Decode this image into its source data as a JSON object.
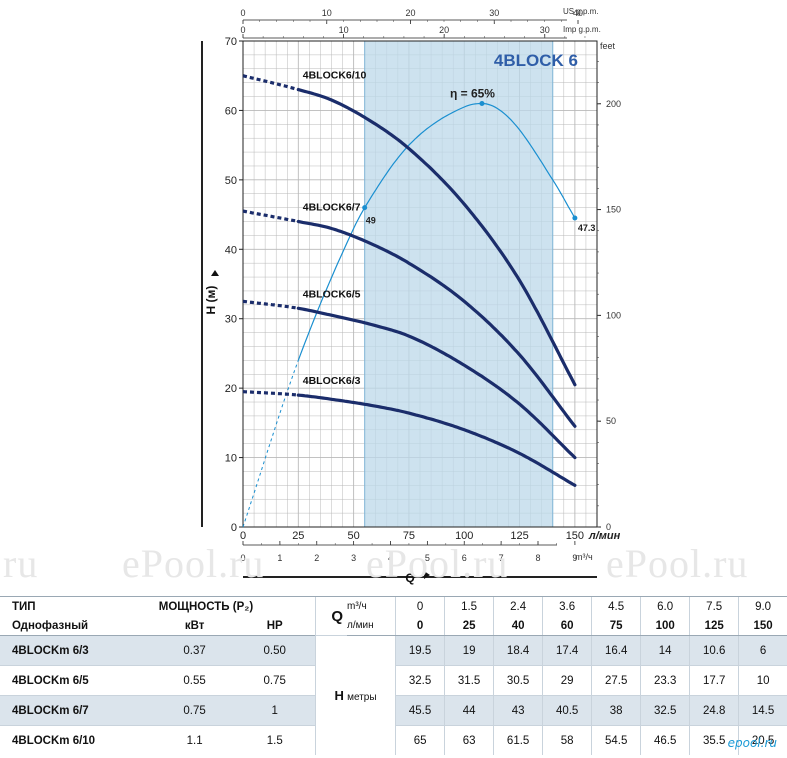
{
  "chart_data": {
    "type": "line",
    "title": "4BLOCK 6",
    "ylabel": "H (м)",
    "xlabel": "Q",
    "ylim": [
      0,
      70
    ],
    "yticks": [
      0,
      10,
      20,
      30,
      40,
      50,
      60,
      70
    ],
    "xlim": [
      0,
      160
    ],
    "xticks_lmin": [
      0,
      25,
      50,
      75,
      100,
      125,
      150
    ],
    "xticks_lmin_labels": [
      "0",
      "25",
      "50",
      "75",
      "100",
      "125",
      "150"
    ],
    "x_unit_lmin": "л/мин",
    "xticks_m3h": [
      0,
      1,
      2,
      3,
      4,
      5,
      6,
      7,
      8,
      9
    ],
    "x_unit_m3h": "m³/ч",
    "top_us_ticks": [
      0,
      10,
      20,
      30,
      40
    ],
    "top_us_label": "US g.p.m.",
    "top_imp_ticks": [
      0,
      10,
      20,
      30
    ],
    "top_imp_label": "Imp g.p.m.",
    "right_feet_ticks": [
      0,
      50,
      100,
      150,
      200
    ],
    "right_feet_label": "feet",
    "grid": true,
    "shaded_region_lmin": [
      55,
      140
    ],
    "series": [
      {
        "name": "4BLOCK6/10",
        "x": [
          0,
          25,
          40,
          60,
          75,
          100,
          125,
          150
        ],
        "y": [
          65,
          63,
          61.5,
          58,
          54.5,
          46.5,
          35.5,
          20.5
        ]
      },
      {
        "name": "4BLOCK6/7",
        "x": [
          0,
          25,
          40,
          60,
          75,
          100,
          125,
          150
        ],
        "y": [
          45.5,
          44,
          43,
          40.5,
          38,
          32.5,
          24.8,
          14.5
        ]
      },
      {
        "name": "4BLOCK6/5",
        "x": [
          0,
          25,
          40,
          60,
          75,
          100,
          125,
          150
        ],
        "y": [
          32.5,
          31.5,
          30.5,
          29,
          27.5,
          23.3,
          17.7,
          10
        ]
      },
      {
        "name": "4BLOCK6/3",
        "x": [
          0,
          25,
          40,
          60,
          75,
          100,
          125,
          150
        ],
        "y": [
          19.5,
          19,
          18.4,
          17.4,
          16.4,
          14,
          10.6,
          6
        ]
      }
    ],
    "efficiency": {
      "label": "η = 65%",
      "start_label": "49",
      "end_label": "47.3",
      "points_x": [
        0,
        25,
        50,
        55,
        75,
        100,
        108,
        120,
        140,
        150
      ],
      "points_y": [
        0,
        24,
        43,
        46,
        55,
        60.5,
        61,
        59,
        50,
        44.5
      ],
      "marked_x": [
        55,
        108,
        150
      ]
    }
  },
  "watermarks": [
    ".ru",
    "ePool.ru",
    "ePool.ru",
    "ePool.ru"
  ],
  "table": {
    "h_type": "ТИП",
    "h_single": "Однофазный",
    "h_power": "МОЩНОСТЬ (P₂)",
    "h_kw": "кВт",
    "h_hp": "HP",
    "q_label": "Q",
    "q_unit_m3h": "m³/ч",
    "q_unit_lmin": "л/мин",
    "q_m3h": [
      "0",
      "1.5",
      "2.4",
      "3.6",
      "4.5",
      "6.0",
      "7.5",
      "9.0"
    ],
    "q_lmin": [
      "0",
      "25",
      "40",
      "60",
      "75",
      "100",
      "125",
      "150"
    ],
    "h_label": "H",
    "h_unit": "метры",
    "rows": [
      {
        "model": "4BLOCKm 6/3",
        "kw": "0.37",
        "hp": "0.50",
        "h": [
          "19.5",
          "19",
          "18.4",
          "17.4",
          "16.4",
          "14",
          "10.6",
          "6"
        ]
      },
      {
        "model": "4BLOCKm 6/5",
        "kw": "0.55",
        "hp": "0.75",
        "h": [
          "32.5",
          "31.5",
          "30.5",
          "29",
          "27.5",
          "23.3",
          "17.7",
          "10"
        ]
      },
      {
        "model": "4BLOCKm 6/7",
        "kw": "0.75",
        "hp": "1",
        "h": [
          "45.5",
          "44",
          "43",
          "40.5",
          "38",
          "32.5",
          "24.8",
          "14.5"
        ]
      },
      {
        "model": "4BLOCKm 6/10",
        "kw": "1.1",
        "hp": "1.5",
        "h": [
          "65",
          "63",
          "61.5",
          "58",
          "54.5",
          "46.5",
          "35.5",
          "20.5"
        ]
      }
    ]
  },
  "logo": "epool.ru",
  "colors": {
    "curve": "#1b2d6b",
    "eff": "#1a8fd0",
    "shade": "#bcd8ea",
    "title": "#2f5ea8",
    "grid": "#b9b9b9"
  }
}
